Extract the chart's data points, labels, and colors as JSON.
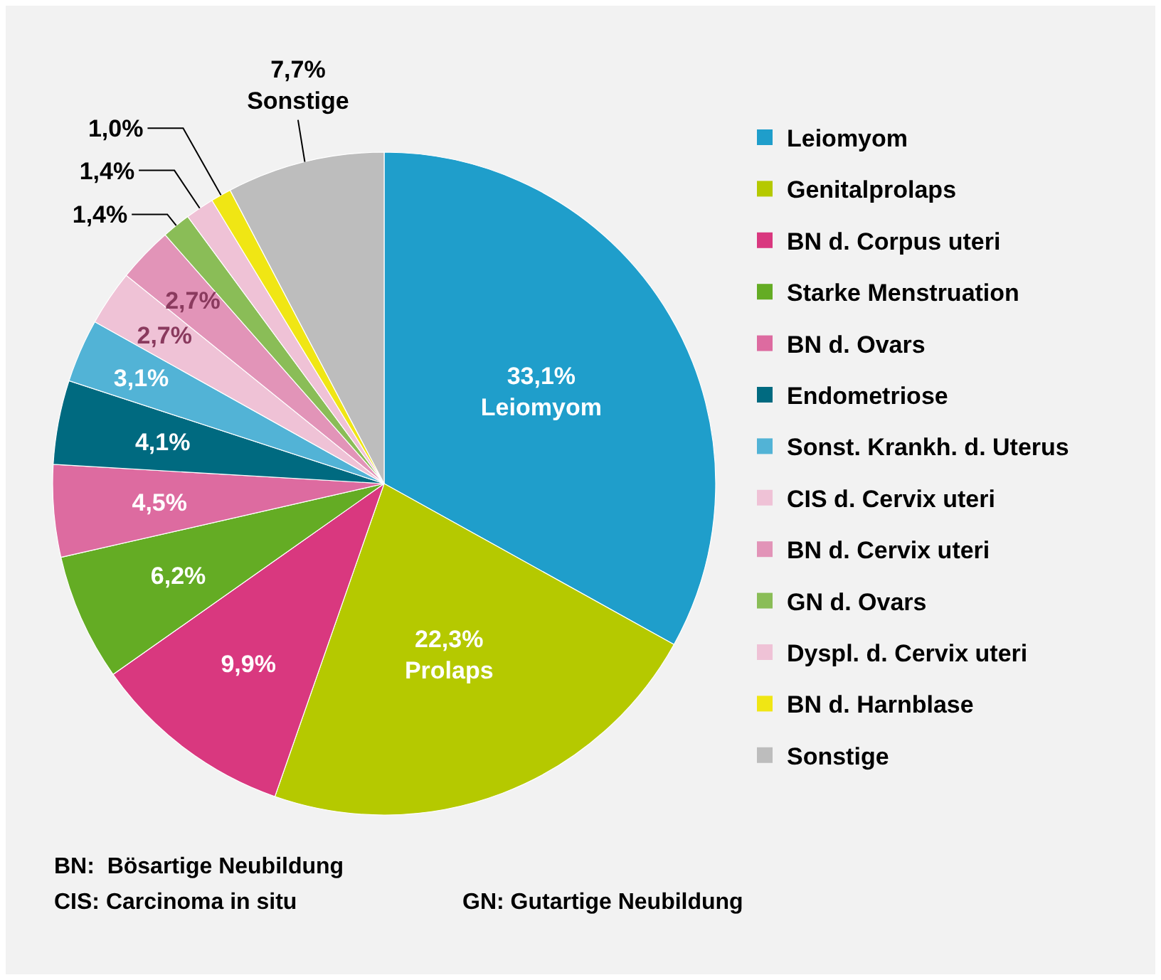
{
  "chart_data": {
    "type": "pie",
    "categories": [
      "Leiomyom",
      "Genitalprolaps",
      "BN d. Corpus uteri",
      "Starke Menstruation",
      "BN d. Ovars",
      "Endometriose",
      "Sonst. Krankh. d. Uterus",
      "CIS d. Cervix uteri",
      "BN d. Cervix uteri",
      "GN d. Ovars",
      "Dyspl. d. Cervix uteri",
      "BN d. Harnblase",
      "Sonstige"
    ],
    "values": [
      33.1,
      22.3,
      9.9,
      6.2,
      4.5,
      4.1,
      3.1,
      2.7,
      2.7,
      1.4,
      1.4,
      1.0,
      7.7
    ],
    "colors": [
      "#1f9ecb",
      "#b5c900",
      "#d9387f",
      "#64ac24",
      "#dd6ba0",
      "#006a80",
      "#52b3d6",
      "#efc2d6",
      "#e294b8",
      "#8abd57",
      "#efc2d6",
      "#f0e614",
      "#bdbdbd"
    ],
    "value_labels": [
      "33,1%\nLeiomyom",
      "22,3%\nProlaps",
      "9,9%",
      "6,2%",
      "4,5%",
      "4,1%",
      "3,1%",
      "2,7%",
      "2,7%",
      "1,4%",
      "1,4%",
      "1,0%",
      "7,7%\nSonstige"
    ],
    "legend": "right",
    "annotations": [
      "BN:  Bösartige Neubildung",
      "CIS: Carcinoma in situ",
      "GN: Gutartige Neubildung"
    ]
  }
}
